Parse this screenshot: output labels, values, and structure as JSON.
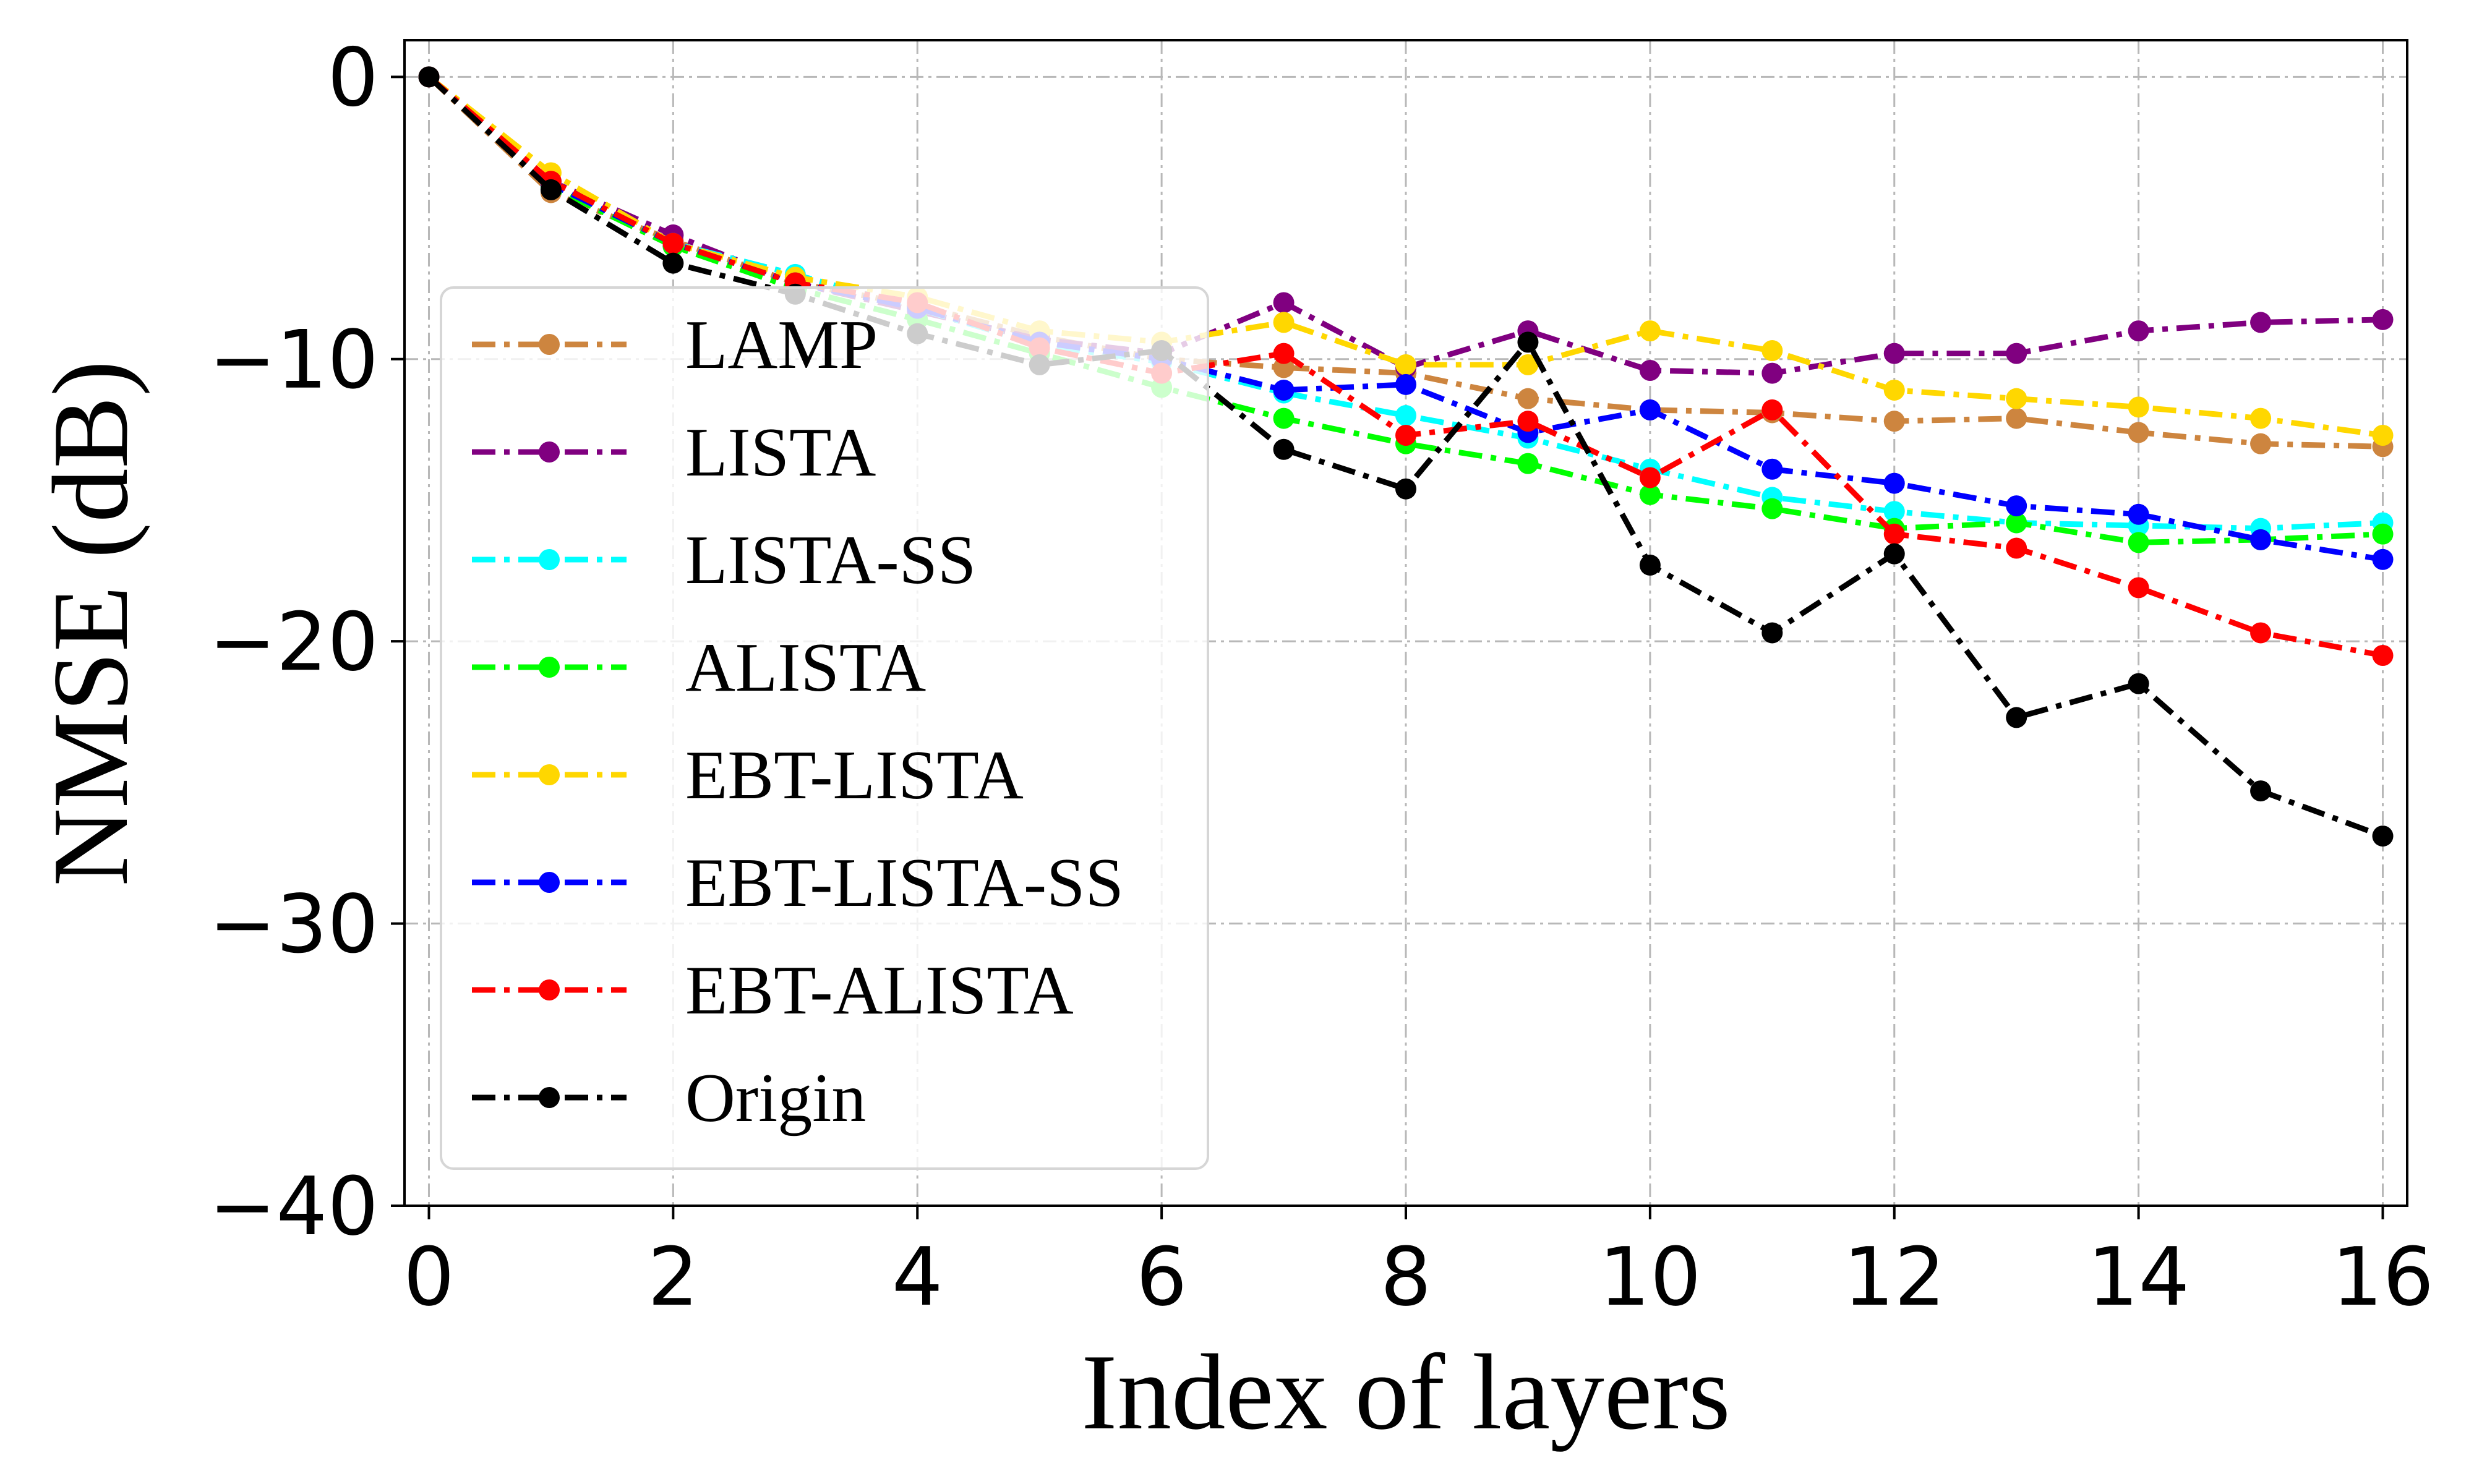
{
  "chart_data": {
    "type": "line",
    "title": "",
    "xlabel": "Index of layers",
    "ylabel": "NMSE (dB)",
    "xlim": [
      -0.2,
      16.2
    ],
    "ylim": [
      -40,
      1.3
    ],
    "xticks": [
      0,
      2,
      4,
      6,
      8,
      10,
      12,
      14,
      16
    ],
    "yticks": [
      0,
      -10,
      -20,
      -30,
      -40
    ],
    "ytick_labels": [
      "0",
      "−10",
      "−20",
      "−30",
      "−40"
    ],
    "grid": true,
    "legend_position": "center-left",
    "x": [
      0,
      1,
      2,
      3,
      4,
      5,
      6,
      7,
      8,
      9,
      10,
      11,
      12,
      13,
      14,
      15,
      16
    ],
    "series": [
      {
        "name": "LAMP",
        "color": "#cd853f",
        "values": [
          0,
          -4.1,
          -5.8,
          -7.3,
          -8.1,
          -9.2,
          -10.0,
          -10.3,
          -10.5,
          -11.4,
          -11.8,
          -11.9,
          -12.2,
          -12.1,
          -12.6,
          -13.0,
          -13.1
        ]
      },
      {
        "name": "LISTA",
        "color": "#800080",
        "values": [
          0,
          -3.7,
          -5.6,
          -7.3,
          -8.3,
          -9.3,
          -9.8,
          -8.0,
          -10.3,
          -9.0,
          -10.4,
          -10.5,
          -9.8,
          -9.8,
          -9.0,
          -8.7,
          -8.6
        ]
      },
      {
        "name": "LISTA-SS",
        "color": "#00ffff",
        "values": [
          0,
          -3.8,
          -5.9,
          -7.0,
          -8.2,
          -9.5,
          -10.1,
          -11.2,
          -12.0,
          -12.8,
          -13.9,
          -14.9,
          -15.4,
          -15.8,
          -15.9,
          -16.0,
          -15.8
        ]
      },
      {
        "name": "ALISTA",
        "color": "#00ff00",
        "values": [
          0,
          -3.9,
          -6.0,
          -7.5,
          -8.6,
          -9.8,
          -11.0,
          -12.1,
          -13.0,
          -13.7,
          -14.8,
          -15.3,
          -16.0,
          -15.8,
          -16.5,
          -16.4,
          -16.2
        ]
      },
      {
        "name": "EBT-LISTA",
        "color": "#ffd700",
        "values": [
          0,
          -3.4,
          -5.9,
          -7.1,
          -7.8,
          -9.0,
          -9.4,
          -8.7,
          -10.2,
          -10.2,
          -9.0,
          -9.7,
          -11.1,
          -11.4,
          -11.7,
          -12.1,
          -12.7
        ]
      },
      {
        "name": "EBT-LISTA-SS",
        "color": "#0000ff",
        "values": [
          0,
          -3.8,
          -5.9,
          -7.3,
          -8.2,
          -9.4,
          -10.0,
          -11.1,
          -10.9,
          -12.6,
          -11.8,
          -13.9,
          -14.4,
          -15.2,
          -15.5,
          -16.4,
          -17.1
        ]
      },
      {
        "name": "EBT-ALISTA",
        "color": "#ff0000",
        "values": [
          0,
          -3.7,
          -5.9,
          -7.3,
          -8.0,
          -9.6,
          -10.5,
          -9.8,
          -12.7,
          -12.2,
          -14.2,
          -11.8,
          -16.2,
          -16.7,
          -18.1,
          -19.7,
          -20.5
        ]
      },
      {
        "name": "Origin",
        "color": "#000000",
        "values": [
          0,
          -4.0,
          -6.6,
          -7.7,
          -9.1,
          -10.2,
          -9.7,
          -13.2,
          -14.6,
          -9.4,
          -17.3,
          -19.7,
          -16.9,
          -22.7,
          -21.5,
          -25.3,
          -26.9
        ]
      }
    ]
  }
}
